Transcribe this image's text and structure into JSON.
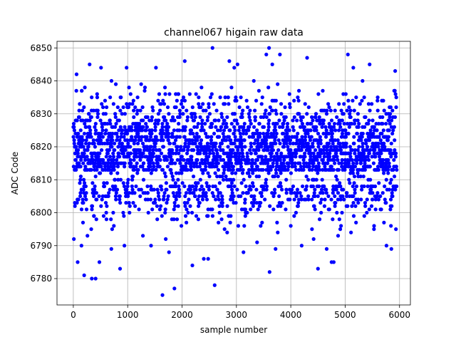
{
  "chart_data": {
    "type": "scatter",
    "title": "channel067 higain raw data",
    "xlabel": "sample number",
    "ylabel": "ADC Code",
    "xlim": [
      -300,
      6200
    ],
    "ylim": [
      6772,
      6852
    ],
    "xticks": [
      0,
      1000,
      2000,
      3000,
      4000,
      5000,
      6000
    ],
    "yticks": [
      6780,
      6790,
      6800,
      6810,
      6820,
      6830,
      6840,
      6850
    ],
    "grid": true,
    "marker_color": "#0000ff",
    "series": [
      {
        "points": [
          [
            10,
            6792
          ],
          [
            60,
            6842
          ],
          [
            80,
            6785
          ],
          [
            200,
            6781
          ],
          [
            300,
            6845
          ],
          [
            340,
            6780
          ],
          [
            410,
            6780
          ],
          [
            480,
            6785
          ],
          [
            510,
            6844
          ],
          [
            860,
            6783
          ],
          [
            980,
            6844
          ],
          [
            1520,
            6844
          ],
          [
            1640,
            6775
          ],
          [
            1860,
            6777
          ],
          [
            2050,
            6846
          ],
          [
            2190,
            6784
          ],
          [
            2400,
            6786
          ],
          [
            2480,
            6786
          ],
          [
            2560,
            6850
          ],
          [
            2600,
            6778
          ],
          [
            2870,
            6846
          ],
          [
            2960,
            6844
          ],
          [
            3020,
            6845
          ],
          [
            3320,
            6840
          ],
          [
            3550,
            6848
          ],
          [
            3600,
            6850
          ],
          [
            3610,
            6782
          ],
          [
            3660,
            6845
          ],
          [
            3720,
            6789
          ],
          [
            3800,
            6848
          ],
          [
            4300,
            6847
          ],
          [
            4500,
            6783
          ],
          [
            4750,
            6785
          ],
          [
            4790,
            6785
          ],
          [
            5050,
            6848
          ],
          [
            5150,
            6844
          ],
          [
            5320,
            6840
          ],
          [
            5450,
            6845
          ],
          [
            5920,
            6843
          ],
          [
            150,
            6790
          ],
          [
            260,
            6793
          ],
          [
            330,
            6795
          ],
          [
            700,
            6789
          ],
          [
            940,
            6790
          ],
          [
            1280,
            6793
          ],
          [
            1430,
            6790
          ],
          [
            1700,
            6792
          ],
          [
            1760,
            6788
          ],
          [
            2300,
            6798
          ],
          [
            2830,
            6794
          ],
          [
            3130,
            6788
          ],
          [
            3380,
            6791
          ],
          [
            3760,
            6794
          ],
          [
            4200,
            6790
          ],
          [
            4420,
            6792
          ],
          [
            4660,
            6789
          ],
          [
            4870,
            6793
          ],
          [
            5200,
            6797
          ],
          [
            5530,
            6795
          ],
          [
            5760,
            6790
          ],
          [
            5850,
            6789
          ]
        ]
      }
    ]
  }
}
